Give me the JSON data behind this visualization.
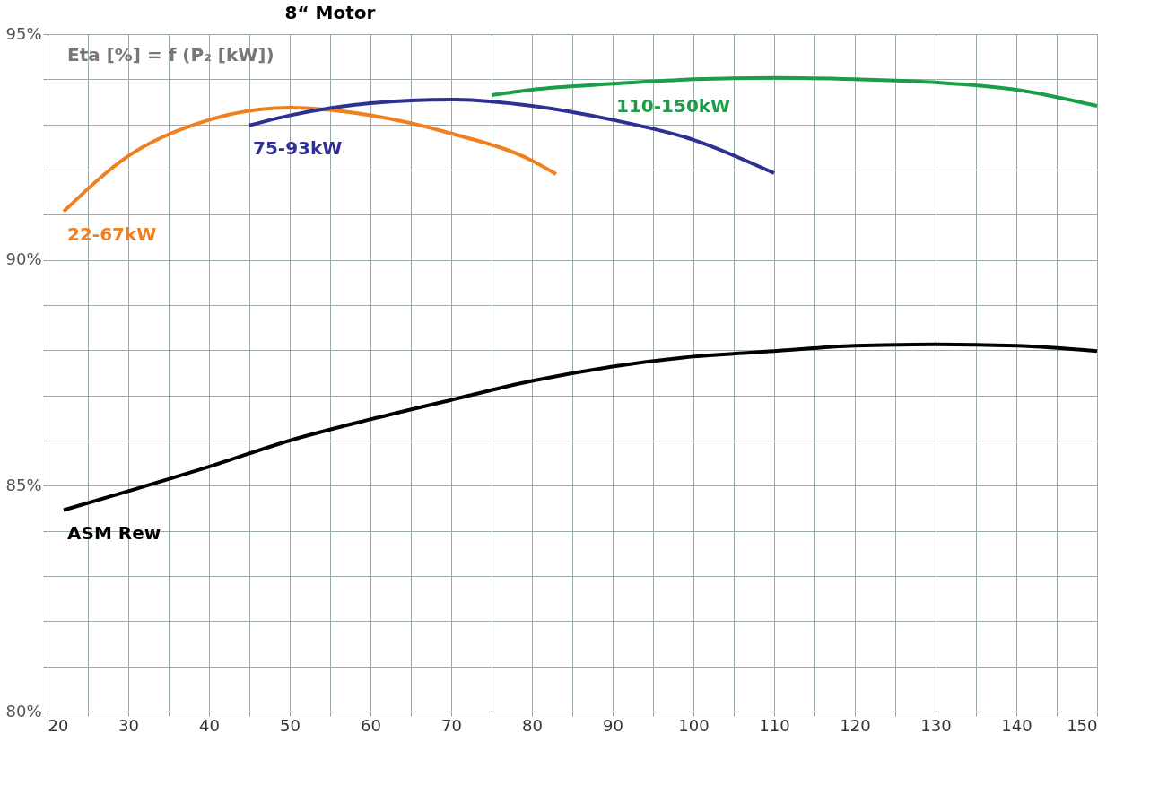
{
  "chart_data": {
    "type": "line",
    "title": "8“ Motor",
    "annotations": [
      "Eta [%] = f (P₂ [kW])"
    ],
    "xlim": [
      20,
      150
    ],
    "xticks": [
      20,
      {
        "value": 25,
        "label": null
      },
      30,
      {
        "value": 35,
        "label": null
      },
      40,
      {
        "value": 45,
        "label": null
      },
      50,
      {
        "value": 55,
        "label": null
      },
      60,
      {
        "value": 65,
        "label": null
      },
      70,
      {
        "value": 75,
        "label": null
      },
      80,
      {
        "value": 85,
        "label": null
      },
      90,
      {
        "value": 95,
        "label": null
      },
      100,
      {
        "value": 105,
        "label": null
      },
      110,
      {
        "value": 115,
        "label": null
      },
      120,
      {
        "value": 125,
        "label": null
      },
      130,
      {
        "value": 135,
        "label": null
      },
      140,
      {
        "value": 145,
        "label": null
      },
      150
    ],
    "ylim": [
      80,
      95
    ],
    "yticks": [
      {
        "value": 80,
        "label": "80%"
      },
      {
        "value": 81,
        "label": null
      },
      {
        "value": 82,
        "label": null
      },
      {
        "value": 83,
        "label": null
      },
      {
        "value": 84,
        "label": null
      },
      {
        "value": 85,
        "label": "85%"
      },
      {
        "value": 86,
        "label": null
      },
      {
        "value": 87,
        "label": null
      },
      {
        "value": 88,
        "label": null
      },
      {
        "value": 89,
        "label": null
      },
      {
        "value": 90,
        "label": "90%"
      },
      {
        "value": 91,
        "label": null
      },
      {
        "value": 92,
        "label": null
      },
      {
        "value": 93,
        "label": null
      },
      {
        "value": 94,
        "label": null
      },
      {
        "value": 95,
        "label": "95%"
      }
    ],
    "grid": true,
    "legend": false,
    "marker": "none",
    "line_style": "solid",
    "series": [
      {
        "name": "22-67kW",
        "color": "#f07f1e",
        "x": [
          22,
          30,
          40,
          50,
          60,
          70,
          80,
          83
        ],
        "values": [
          91.07,
          92.3,
          93.1,
          93.37,
          93.2,
          92.8,
          92.2,
          91.9
        ]
      },
      {
        "name": "75-93kW",
        "color": "#2e3192",
        "x": [
          45,
          50,
          60,
          70,
          80,
          90,
          100,
          110
        ],
        "values": [
          92.98,
          93.2,
          93.47,
          93.55,
          93.41,
          93.1,
          92.66,
          91.92
        ]
      },
      {
        "name": "110-150kW",
        "color": "#1a9e47",
        "x": [
          75,
          80,
          90,
          100,
          110,
          120,
          130,
          140,
          150
        ],
        "values": [
          93.65,
          93.77,
          93.9,
          94.0,
          94.03,
          94.0,
          93.93,
          93.77,
          93.41
        ]
      },
      {
        "name": "ASM Rew",
        "color": "#000000",
        "x": [
          22,
          30,
          40,
          50,
          60,
          70,
          80,
          90,
          100,
          110,
          120,
          130,
          140,
          150
        ],
        "values": [
          84.46,
          84.88,
          85.42,
          86.0,
          86.47,
          86.9,
          87.32,
          87.64,
          87.86,
          87.98,
          88.1,
          88.13,
          88.1,
          87.98
        ]
      }
    ]
  }
}
